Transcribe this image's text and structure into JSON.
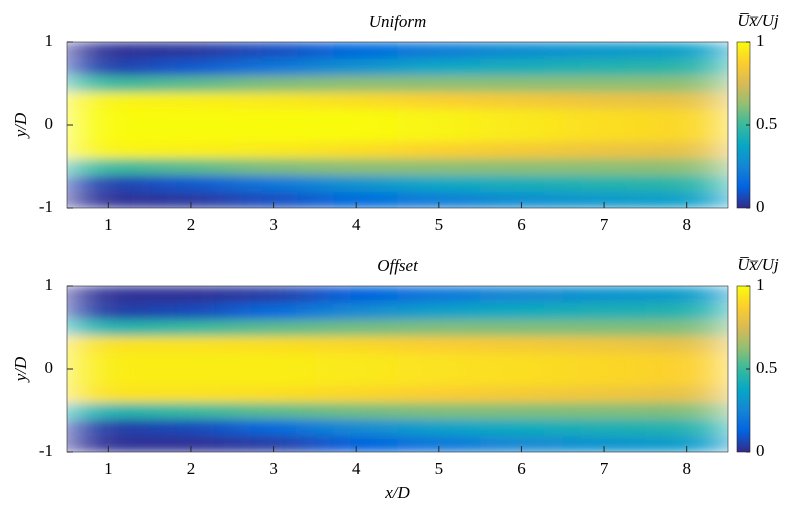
{
  "chart_data": [
    {
      "type": "heatmap",
      "title": "Uniform",
      "ylabel": "y/D",
      "colorbar_label": "U̅x̅/Uj",
      "colormap": "parula",
      "xlim": [
        0.5,
        8.5
      ],
      "ylim": [
        -1,
        1
      ],
      "xticks": [
        1,
        2,
        3,
        4,
        5,
        6,
        7,
        8
      ],
      "yticks": [
        -1,
        0,
        1
      ],
      "zlim": [
        0,
        1
      ],
      "cticks": [
        0,
        0.5,
        1
      ],
      "x": [
        1,
        2,
        3,
        4,
        5,
        6,
        7,
        8
      ],
      "y": [
        -0.9,
        -0.7,
        -0.5,
        -0.3,
        -0.1,
        0.1,
        0.3,
        0.5,
        0.7,
        0.9
      ],
      "z": [
        [
          0.02,
          0.03,
          0.08,
          0.15,
          0.22,
          0.28,
          0.32,
          0.35
        ],
        [
          0.05,
          0.1,
          0.2,
          0.3,
          0.38,
          0.42,
          0.45,
          0.47
        ],
        [
          0.5,
          0.55,
          0.6,
          0.62,
          0.62,
          0.62,
          0.62,
          0.62
        ],
        [
          0.98,
          0.97,
          0.95,
          0.92,
          0.88,
          0.85,
          0.82,
          0.8
        ],
        [
          1,
          1,
          1,
          1,
          0.98,
          0.95,
          0.92,
          0.9
        ],
        [
          1,
          1,
          1,
          1,
          0.98,
          0.95,
          0.92,
          0.9
        ],
        [
          0.98,
          0.97,
          0.95,
          0.92,
          0.88,
          0.85,
          0.82,
          0.8
        ],
        [
          0.5,
          0.55,
          0.6,
          0.62,
          0.62,
          0.62,
          0.62,
          0.62
        ],
        [
          0.05,
          0.1,
          0.2,
          0.3,
          0.38,
          0.42,
          0.45,
          0.47
        ],
        [
          0.02,
          0.03,
          0.08,
          0.15,
          0.22,
          0.28,
          0.32,
          0.35
        ]
      ]
    },
    {
      "type": "heatmap",
      "title": "Offset",
      "xlabel": "x/D",
      "ylabel": "y/D",
      "colorbar_label": "U̅x̅/Uj",
      "colormap": "parula",
      "xlim": [
        0.5,
        8.5
      ],
      "ylim": [
        -1,
        1
      ],
      "xticks": [
        1,
        2,
        3,
        4,
        5,
        6,
        7,
        8
      ],
      "yticks": [
        -1,
        0,
        1
      ],
      "zlim": [
        0,
        1
      ],
      "cticks": [
        0,
        0.5,
        1
      ],
      "x": [
        1,
        2,
        3,
        4,
        5,
        6,
        7,
        8
      ],
      "y": [
        -0.9,
        -0.7,
        -0.5,
        -0.3,
        -0.1,
        0.1,
        0.3,
        0.5,
        0.7,
        0.9
      ],
      "z": [
        [
          0.02,
          0.02,
          0.04,
          0.12,
          0.2,
          0.26,
          0.3,
          0.33
        ],
        [
          0.04,
          0.07,
          0.15,
          0.27,
          0.35,
          0.4,
          0.43,
          0.45
        ],
        [
          0.45,
          0.5,
          0.55,
          0.58,
          0.6,
          0.6,
          0.6,
          0.6
        ],
        [
          0.93,
          0.93,
          0.92,
          0.9,
          0.87,
          0.85,
          0.83,
          0.8
        ],
        [
          0.96,
          0.96,
          0.96,
          0.95,
          0.93,
          0.92,
          0.9,
          0.88
        ],
        [
          0.96,
          0.96,
          0.96,
          0.95,
          0.93,
          0.92,
          0.9,
          0.88
        ],
        [
          0.93,
          0.93,
          0.92,
          0.9,
          0.87,
          0.85,
          0.83,
          0.8
        ],
        [
          0.45,
          0.5,
          0.55,
          0.58,
          0.6,
          0.6,
          0.6,
          0.6
        ],
        [
          0.04,
          0.07,
          0.15,
          0.27,
          0.35,
          0.4,
          0.43,
          0.45
        ],
        [
          0.02,
          0.02,
          0.04,
          0.12,
          0.2,
          0.26,
          0.3,
          0.33
        ]
      ]
    }
  ]
}
